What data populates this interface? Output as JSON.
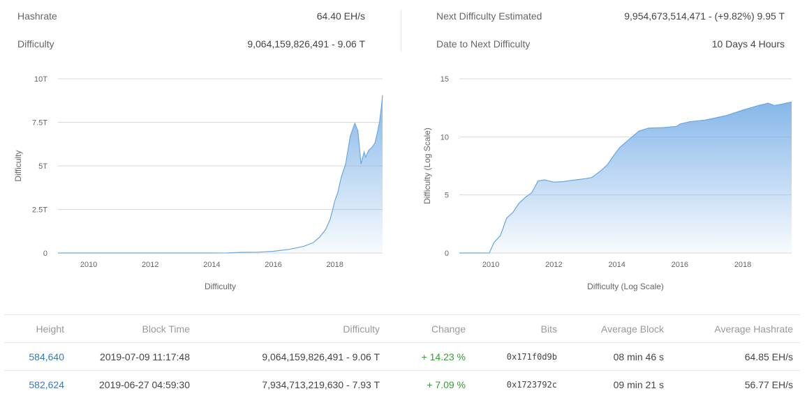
{
  "stats": {
    "hashrate_label": "Hashrate",
    "hashrate_value": "64.40 EH/s",
    "difficulty_label": "Difficulty",
    "difficulty_value": "9,064,159,826,491 - 9.06 T",
    "next_label": "Next Difficulty Estimated",
    "next_value": "9,954,673,514,471 - (+9.82%) 9.95 T",
    "date_label": "Date to Next Difficulty",
    "date_value": "10 Days 4 Hours"
  },
  "chart_data": [
    {
      "type": "area",
      "xlabel": "Difficulty",
      "ylabel": "Difficulty",
      "x_ticks": [
        "2010",
        "2012",
        "2014",
        "2016",
        "2018"
      ],
      "y_tick_labels": [
        "0",
        "2.5T",
        "5T",
        "7.5T",
        "10T"
      ],
      "ylim": [
        0,
        10
      ],
      "xlim": [
        2009.0,
        2019.55
      ],
      "grid": true,
      "color": "#7fb3e8",
      "points": [
        [
          2009.0,
          0.0
        ],
        [
          2012.0,
          0.0
        ],
        [
          2014.0,
          0.0
        ],
        [
          2014.5,
          0.01
        ],
        [
          2015.0,
          0.04
        ],
        [
          2015.5,
          0.05
        ],
        [
          2016.0,
          0.1
        ],
        [
          2016.5,
          0.21
        ],
        [
          2017.0,
          0.39
        ],
        [
          2017.3,
          0.6
        ],
        [
          2017.5,
          0.9
        ],
        [
          2017.7,
          1.35
        ],
        [
          2017.85,
          1.95
        ],
        [
          2018.0,
          3.0
        ],
        [
          2018.1,
          3.5
        ],
        [
          2018.2,
          4.3
        ],
        [
          2018.35,
          5.1
        ],
        [
          2018.5,
          6.7
        ],
        [
          2018.65,
          7.45
        ],
        [
          2018.75,
          7.0
        ],
        [
          2018.85,
          5.1
        ],
        [
          2018.95,
          5.8
        ],
        [
          2019.0,
          5.5
        ],
        [
          2019.1,
          5.9
        ],
        [
          2019.2,
          6.05
        ],
        [
          2019.3,
          6.3
        ],
        [
          2019.4,
          7.05
        ],
        [
          2019.45,
          7.5
        ],
        [
          2019.5,
          8.2
        ],
        [
          2019.55,
          9.06
        ]
      ]
    },
    {
      "type": "area",
      "xlabel": "Difficulty (Log Scale)",
      "ylabel": "Difficulty (Log Scale)",
      "x_ticks": [
        "2010",
        "2012",
        "2014",
        "2016",
        "2018"
      ],
      "y_tick_labels": [
        "0",
        "5",
        "10",
        "15"
      ],
      "ylim": [
        0,
        15
      ],
      "xlim": [
        2009.0,
        2019.55
      ],
      "grid": true,
      "color": "#7fb3e8",
      "points": [
        [
          2009.0,
          0.0
        ],
        [
          2009.95,
          0.0
        ],
        [
          2010.1,
          0.9
        ],
        [
          2010.3,
          1.5
        ],
        [
          2010.5,
          3.0
        ],
        [
          2010.7,
          3.5
        ],
        [
          2010.9,
          4.3
        ],
        [
          2011.1,
          4.8
        ],
        [
          2011.3,
          5.2
        ],
        [
          2011.5,
          6.2
        ],
        [
          2011.7,
          6.3
        ],
        [
          2012.0,
          6.1
        ],
        [
          2012.3,
          6.15
        ],
        [
          2012.7,
          6.3
        ],
        [
          2013.0,
          6.4
        ],
        [
          2013.2,
          6.5
        ],
        [
          2013.5,
          7.1
        ],
        [
          2013.7,
          7.6
        ],
        [
          2013.9,
          8.4
        ],
        [
          2014.1,
          9.1
        ],
        [
          2014.4,
          9.8
        ],
        [
          2014.7,
          10.5
        ],
        [
          2015.0,
          10.75
        ],
        [
          2015.5,
          10.8
        ],
        [
          2015.9,
          10.9
        ],
        [
          2016.0,
          11.1
        ],
        [
          2016.3,
          11.3
        ],
        [
          2016.8,
          11.45
        ],
        [
          2017.0,
          11.55
        ],
        [
          2017.5,
          11.85
        ],
        [
          2018.0,
          12.3
        ],
        [
          2018.5,
          12.7
        ],
        [
          2018.8,
          12.9
        ],
        [
          2019.0,
          12.7
        ],
        [
          2019.2,
          12.8
        ],
        [
          2019.55,
          13.0
        ]
      ]
    }
  ],
  "table": {
    "headers": [
      "Height",
      "Block Time",
      "Difficulty",
      "Change",
      "Bits",
      "Average Block",
      "Average Hashrate"
    ],
    "rows": [
      {
        "height": "584,640",
        "time": "2019-07-09 11:17:48",
        "difficulty": "9,064,159,826,491 - 9.06 T",
        "change": "+ 14.23 %",
        "bits": "0x171f0d9b",
        "avg_block": "08 min 46 s",
        "avg_hashrate": "64.85 EH/s"
      },
      {
        "height": "582,624",
        "time": "2019-06-27 04:59:30",
        "difficulty": "7,934,713,219,630 - 7.93 T",
        "change": "+ 7.09 %",
        "bits": "0x1723792c",
        "avg_block": "09 min 21 s",
        "avg_hashrate": "56.77 EH/s"
      }
    ]
  }
}
